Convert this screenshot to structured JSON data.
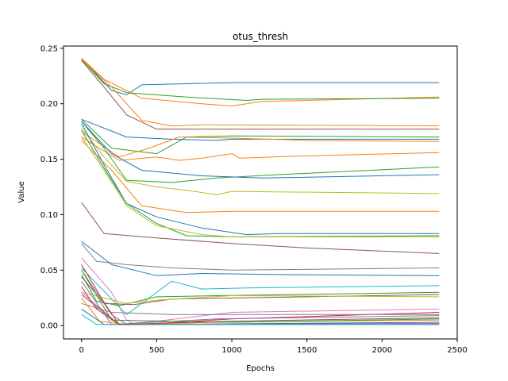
{
  "chart_data": {
    "type": "line",
    "title": "otus_thresh",
    "xlabel": "Epochs",
    "ylabel": "Value",
    "xlim": [
      -120,
      2500
    ],
    "ylim": [
      -0.012,
      0.252
    ],
    "xticks": [
      0,
      500,
      1000,
      1500,
      2000,
      2500
    ],
    "xtick_labels": [
      "0",
      "500",
      "1000",
      "1500",
      "2000",
      "2500"
    ],
    "yticks": [
      0.0,
      0.05,
      0.1,
      0.15,
      0.2,
      0.25
    ],
    "ytick_labels": [
      "0.00",
      "0.05",
      "0.10",
      "0.15",
      "0.20",
      "0.25"
    ],
    "grid": false,
    "legend": "none",
    "series": [
      {
        "color": "#1f77b4",
        "x": [
          0,
          200,
          300,
          400,
          1000,
          2380
        ],
        "values": [
          0.241,
          0.212,
          0.208,
          0.217,
          0.219,
          0.219
        ]
      },
      {
        "color": "#ff7f0e",
        "x": [
          0,
          150,
          400,
          800,
          1000,
          1200,
          2380
        ],
        "values": [
          0.241,
          0.222,
          0.205,
          0.2,
          0.198,
          0.202,
          0.206
        ]
      },
      {
        "color": "#2ca02c",
        "x": [
          0,
          150,
          300,
          700,
          1100,
          1200,
          2380
        ],
        "values": [
          0.24,
          0.218,
          0.21,
          0.206,
          0.203,
          0.204,
          0.205
        ]
      },
      {
        "color": "#ff7f0e",
        "x": [
          0,
          200,
          400,
          600,
          800,
          2380
        ],
        "values": [
          0.24,
          0.215,
          0.185,
          0.18,
          0.181,
          0.18
        ]
      },
      {
        "color": "#8c564b",
        "x": [
          0,
          150,
          300,
          500,
          2380
        ],
        "values": [
          0.239,
          0.215,
          0.19,
          0.177,
          0.177
        ]
      },
      {
        "color": "#2ca02c",
        "x": [
          0,
          200,
          500,
          700,
          1000,
          2380
        ],
        "values": [
          0.186,
          0.16,
          0.155,
          0.17,
          0.171,
          0.17
        ]
      },
      {
        "color": "#1f77b4",
        "x": [
          0,
          300,
          600,
          900,
          1000,
          2380
        ],
        "values": [
          0.186,
          0.17,
          0.168,
          0.167,
          0.168,
          0.168
        ]
      },
      {
        "color": "#ff7f0e",
        "x": [
          0,
          250,
          450,
          650,
          1000,
          1500,
          2380
        ],
        "values": [
          0.175,
          0.152,
          0.16,
          0.17,
          0.169,
          0.167,
          0.166
        ]
      },
      {
        "color": "#ff7f0e",
        "x": [
          0,
          250,
          500,
          650,
          800,
          1000,
          1050,
          1500,
          2380
        ],
        "values": [
          0.17,
          0.149,
          0.152,
          0.149,
          0.151,
          0.155,
          0.151,
          0.153,
          0.156
        ]
      },
      {
        "color": "#2ca02c",
        "x": [
          0,
          150,
          300,
          600,
          900,
          1300,
          2380
        ],
        "values": [
          0.184,
          0.16,
          0.131,
          0.129,
          0.133,
          0.136,
          0.143
        ]
      },
      {
        "color": "#1f77b4",
        "x": [
          0,
          200,
          400,
          800,
          1200,
          2380
        ],
        "values": [
          0.184,
          0.155,
          0.14,
          0.135,
          0.133,
          0.136
        ]
      },
      {
        "color": "#bcbd22",
        "x": [
          0,
          150,
          300,
          500,
          700,
          900,
          1000,
          2380
        ],
        "values": [
          0.178,
          0.152,
          0.13,
          0.125,
          0.122,
          0.118,
          0.121,
          0.119
        ]
      },
      {
        "color": "#ff7f0e",
        "x": [
          0,
          200,
          400,
          700,
          1000,
          2380
        ],
        "values": [
          0.167,
          0.14,
          0.108,
          0.102,
          0.103,
          0.103
        ]
      },
      {
        "color": "#1f77b4",
        "x": [
          0,
          150,
          300,
          500,
          800,
          1100,
          1300,
          2380
        ],
        "values": [
          0.182,
          0.145,
          0.11,
          0.098,
          0.088,
          0.082,
          0.083,
          0.083
        ]
      },
      {
        "color": "#2ca02c",
        "x": [
          0,
          150,
          300,
          500,
          700,
          1000,
          2380
        ],
        "values": [
          0.176,
          0.142,
          0.11,
          0.092,
          0.081,
          0.08,
          0.081
        ]
      },
      {
        "color": "#bcbd22",
        "x": [
          0,
          150,
          300,
          500,
          800,
          1000,
          2380
        ],
        "values": [
          0.17,
          0.14,
          0.108,
          0.09,
          0.082,
          0.08,
          0.08
        ]
      },
      {
        "color": "#8c564b",
        "x": [
          0,
          150,
          500,
          1000,
          1500,
          2380
        ],
        "values": [
          0.111,
          0.083,
          0.079,
          0.074,
          0.07,
          0.065
        ]
      },
      {
        "color": "#7f7f7f",
        "x": [
          0,
          100,
          300,
          600,
          1000,
          2380
        ],
        "values": [
          0.074,
          0.058,
          0.055,
          0.052,
          0.05,
          0.052
        ]
      },
      {
        "color": "#1f77b4",
        "x": [
          0,
          200,
          500,
          800,
          1300,
          2380
        ],
        "values": [
          0.076,
          0.055,
          0.045,
          0.047,
          0.046,
          0.045
        ]
      },
      {
        "color": "#e377c2",
        "x": [
          0,
          200,
          300,
          350,
          2380
        ],
        "values": [
          0.061,
          0.03,
          0.005,
          0.001,
          0.001
        ]
      },
      {
        "color": "#17becf",
        "x": [
          0,
          300,
          600,
          800,
          1100,
          2380
        ],
        "values": [
          0.052,
          0.01,
          0.04,
          0.033,
          0.034,
          0.036
        ]
      },
      {
        "color": "#2ca02c",
        "x": [
          0,
          100,
          250,
          500,
          900,
          2380
        ],
        "values": [
          0.046,
          0.022,
          0.018,
          0.026,
          0.027,
          0.03
        ]
      },
      {
        "color": "#8c564b",
        "x": [
          0,
          150,
          350,
          600,
          2380
        ],
        "values": [
          0.044,
          0.02,
          0.019,
          0.024,
          0.028
        ]
      },
      {
        "color": "#d62728",
        "x": [
          0,
          150,
          250,
          400,
          1000,
          2380
        ],
        "values": [
          0.055,
          0.021,
          0.001,
          0.001,
          0.006,
          0.012
        ]
      },
      {
        "color": "#9467bd",
        "x": [
          0,
          200,
          300,
          2380
        ],
        "values": [
          0.05,
          0.01,
          0.001,
          0.002
        ]
      },
      {
        "color": "#bcbd22",
        "x": [
          0,
          300,
          500,
          1000,
          2380
        ],
        "values": [
          0.03,
          0.02,
          0.023,
          0.027,
          0.026
        ]
      },
      {
        "color": "#e377c2",
        "x": [
          0,
          250,
          500,
          1000,
          2380
        ],
        "values": [
          0.03,
          0.001,
          0.004,
          0.012,
          0.015
        ]
      },
      {
        "color": "#7f7f7f",
        "x": [
          0,
          200,
          600,
          1200,
          2380
        ],
        "values": [
          0.02,
          0.012,
          0.01,
          0.01,
          0.01
        ]
      },
      {
        "color": "#ff7f0e",
        "x": [
          0,
          120,
          300,
          900,
          2380
        ],
        "values": [
          0.025,
          0.004,
          0.001,
          0.003,
          0.005
        ]
      },
      {
        "color": "#1f77b4",
        "x": [
          0,
          150,
          400,
          2380
        ],
        "values": [
          0.015,
          0.001,
          0.001,
          0.003
        ]
      },
      {
        "color": "#d62728",
        "x": [
          0,
          100,
          250,
          2380
        ],
        "values": [
          0.035,
          0.015,
          0.001,
          0.001
        ]
      },
      {
        "color": "#9467bd",
        "x": [
          0,
          200,
          900,
          2380
        ],
        "values": [
          0.04,
          0.001,
          0.006,
          0.009
        ]
      },
      {
        "color": "#17becf",
        "x": [
          0,
          100,
          400,
          2380
        ],
        "values": [
          0.01,
          0.001,
          0.001,
          0.001
        ]
      },
      {
        "color": "#2ca02c",
        "x": [
          0,
          200,
          1000,
          2380
        ],
        "values": [
          0.05,
          0.005,
          0.003,
          0.006
        ]
      },
      {
        "color": "#8c564b",
        "x": [
          0,
          250,
          1000,
          2380
        ],
        "values": [
          0.028,
          0.001,
          0.004,
          0.007
        ]
      }
    ]
  }
}
